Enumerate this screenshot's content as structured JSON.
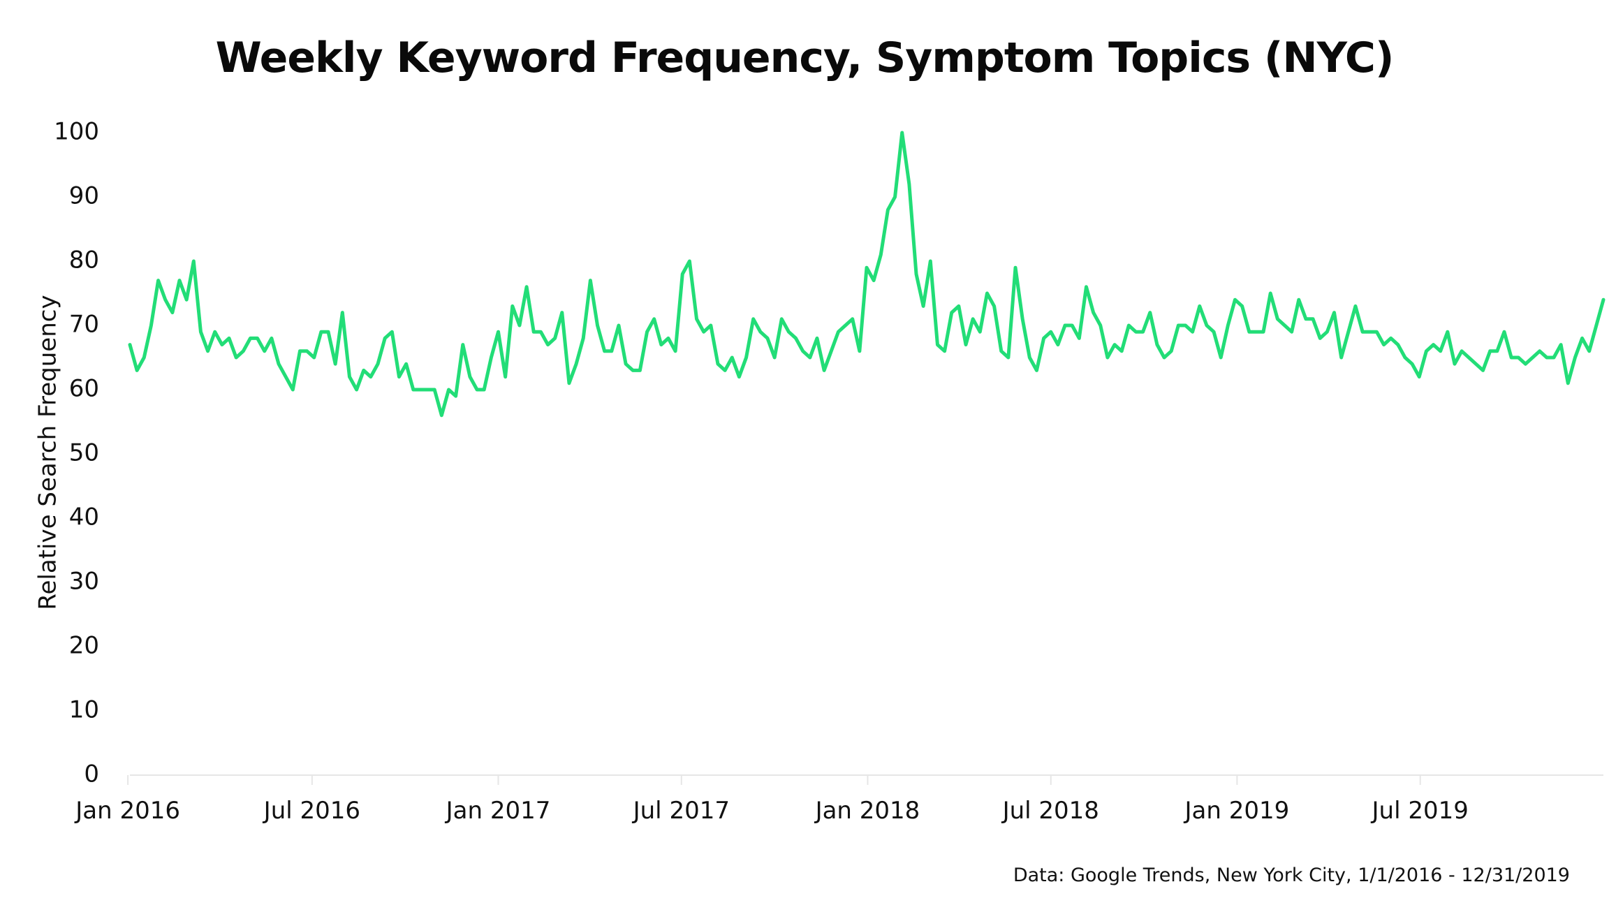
{
  "colors": {
    "line": "#22DD77",
    "axis": "#e6e6e6",
    "text": "#111111"
  },
  "chart_data": {
    "type": "line",
    "title": "Weekly Keyword Frequency, Symptom Topics (NYC)",
    "ylabel": "Relative Search Frequency",
    "xlabel": "",
    "ylim": [
      0,
      100
    ],
    "y_ticks": [
      "0",
      "10",
      "20",
      "30",
      "40",
      "50",
      "60",
      "70",
      "80",
      "90",
      "100"
    ],
    "x_ticks": [
      "Jan 2016",
      "Jul 2016",
      "Jan 2017",
      "Jul 2017",
      "Jan 2018",
      "Jul 2018",
      "Jan 2019",
      "Jul 2019"
    ],
    "x_range": [
      "2016-01-03",
      "2019-12-29"
    ],
    "grid": false,
    "legend": "none",
    "series": [
      {
        "x_start": "2016-01-03",
        "frequency": "weekly",
        "values": [
          67,
          63,
          65,
          70,
          77,
          74,
          72,
          77,
          74,
          80,
          69,
          66,
          69,
          67,
          68,
          65,
          66,
          68,
          68,
          66,
          68,
          64,
          62,
          60,
          66,
          66,
          65,
          69,
          69,
          64,
          72,
          62,
          60,
          63,
          62,
          64,
          68,
          69,
          62,
          64,
          60,
          60,
          60,
          60,
          56,
          60,
          59,
          67,
          62,
          60,
          60,
          65,
          69,
          62,
          73,
          70,
          76,
          69,
          69,
          67,
          68,
          72,
          61,
          64,
          68,
          77,
          70,
          66,
          66,
          70,
          64,
          63,
          63,
          69,
          71,
          67,
          68,
          66,
          78,
          80,
          71,
          69,
          70,
          64,
          63,
          65,
          62,
          65,
          71,
          69,
          68,
          65,
          71,
          69,
          68,
          66,
          65,
          68,
          63,
          66,
          69,
          70,
          71,
          66,
          79,
          77,
          81,
          88,
          90,
          100,
          92,
          78,
          73,
          80,
          67,
          66,
          72,
          73,
          67,
          71,
          69,
          75,
          73,
          66,
          65,
          79,
          71,
          65,
          63,
          68,
          69,
          67,
          70,
          70,
          68,
          76,
          72,
          70,
          65,
          67,
          66,
          70,
          69,
          69,
          72,
          67,
          65,
          66,
          70,
          70,
          69,
          73,
          70,
          69,
          65,
          70,
          74,
          73,
          69,
          69,
          69,
          75,
          71,
          70,
          69,
          74,
          71,
          71,
          68,
          69,
          72,
          65,
          69,
          73,
          69,
          69,
          69,
          67,
          68,
          67,
          65,
          64,
          62,
          66,
          67,
          66,
          69,
          64,
          66,
          65,
          64,
          63,
          66,
          66,
          69,
          65,
          65,
          64,
          65,
          66,
          65,
          65,
          67,
          61,
          65,
          68,
          66,
          70,
          74
        ]
      }
    ]
  },
  "source_note": "Data: Google Trends, New York City, 1/1/2016 - 12/31/2019"
}
